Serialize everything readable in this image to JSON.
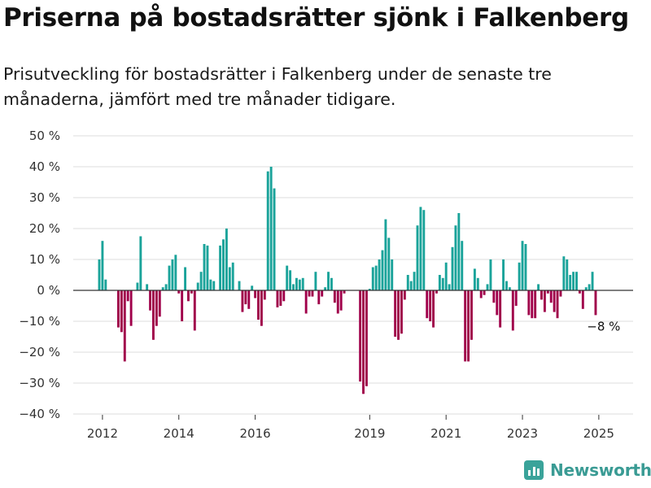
{
  "header": {
    "title": "Priserna på bostadsrätter sjönk i Falkenberg",
    "subtitle": "Prisutveckling för bostadsrätter i Falkenberg under de senaste tre månaderna, jämfört med tre månader tidigare."
  },
  "brand": {
    "name": "Newsworthy",
    "icon": "bar-chart-logo-icon",
    "color": "#3a9b94"
  },
  "colors": {
    "positive": "#1aa39a",
    "negative": "#a0004a",
    "grid": "#dddddd",
    "axis": "#333333"
  },
  "chart_data": {
    "type": "bar",
    "xlabel": "",
    "ylabel": "",
    "ylim": [
      -40,
      50
    ],
    "y_ticks": [
      50,
      40,
      30,
      20,
      10,
      0,
      -10,
      -20,
      -30,
      -40
    ],
    "y_tick_labels": [
      "50 %",
      "40 %",
      "30 %",
      "20 %",
      "10 %",
      "0 %",
      "−10 %",
      "−20 %",
      "−30 %",
      "−40 %"
    ],
    "x_start": "2011-12",
    "x_ticks": [
      {
        "label": "2012",
        "month": "2012-01"
      },
      {
        "label": "2014",
        "month": "2014-01"
      },
      {
        "label": "2016",
        "month": "2016-01"
      },
      {
        "label": "2019",
        "month": "2019-01"
      },
      {
        "label": "2021",
        "month": "2021-01"
      },
      {
        "label": "2023",
        "month": "2023-01"
      },
      {
        "label": "2025",
        "month": "2025-01"
      }
    ],
    "grid": true,
    "values": [
      10,
      16,
      3.5,
      null,
      null,
      null,
      -12,
      -13.5,
      -23,
      -3.5,
      -11.5,
      null,
      2.5,
      17.5,
      null,
      2,
      -6.5,
      -16,
      -11.5,
      -8.5,
      1,
      2,
      8,
      10,
      11.5,
      -1,
      -10,
      7.5,
      -3.5,
      -1,
      -13,
      2.5,
      6,
      15,
      14.5,
      3.5,
      3,
      null,
      14.5,
      16.5,
      20,
      7.5,
      9,
      null,
      3,
      -7,
      -4.5,
      -6,
      1.5,
      -2.5,
      -9.5,
      -11.5,
      -3,
      38.5,
      40,
      33,
      -5.5,
      -5,
      -3.5,
      8,
      6.5,
      2,
      4,
      3.5,
      4,
      -7.5,
      -2,
      -2,
      6,
      -4.5,
      -2,
      1,
      6,
      4,
      -4,
      -7.5,
      -6.5,
      -1,
      null,
      null,
      null,
      null,
      -29.5,
      -33.5,
      -31,
      0.5,
      7.5,
      8,
      10,
      13,
      23,
      17,
      10,
      -15,
      -16,
      -14,
      -3,
      5,
      3,
      6,
      21,
      27,
      26,
      -9,
      -10,
      -12,
      -1,
      5,
      4,
      9,
      2,
      14,
      21,
      25,
      16,
      -23,
      -23,
      -16,
      7,
      4,
      -2.5,
      -1.5,
      2,
      10,
      -4,
      -8,
      -12,
      10,
      3,
      1,
      -13,
      -5,
      9,
      16,
      15,
      -8,
      -9,
      -9,
      2,
      -3,
      -7,
      -1,
      -4,
      -7,
      -9,
      -2,
      11,
      10,
      5,
      6,
      6,
      -1,
      -6,
      1,
      2,
      6,
      -8
    ],
    "annotations": [
      {
        "text": "−8 %",
        "month": "2025-01",
        "value": -8
      }
    ]
  }
}
